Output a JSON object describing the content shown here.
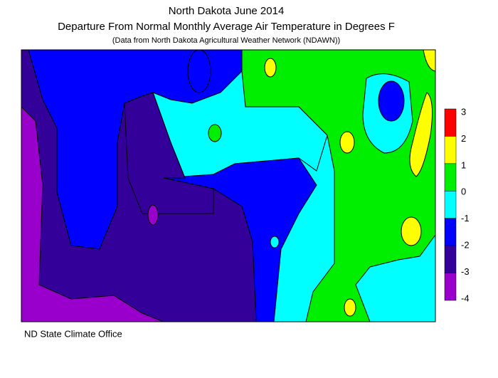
{
  "title": "North Dakota June 2014",
  "subtitle": "Departure From Normal Monthly Average Air Temperature in Degrees F",
  "note": "(Data from North Dakota Agricultural Weather Network (NDAWN))",
  "legend": {
    "ticks": [
      3,
      2,
      1,
      0,
      -1,
      -2,
      -3,
      -4
    ],
    "colors": [
      "#ff0000",
      "#ffff00",
      "#00ee00",
      "#00ffff",
      "#0000ff",
      "#330099",
      "#9900cc"
    ]
  },
  "footer": "ND State Climate Office"
}
